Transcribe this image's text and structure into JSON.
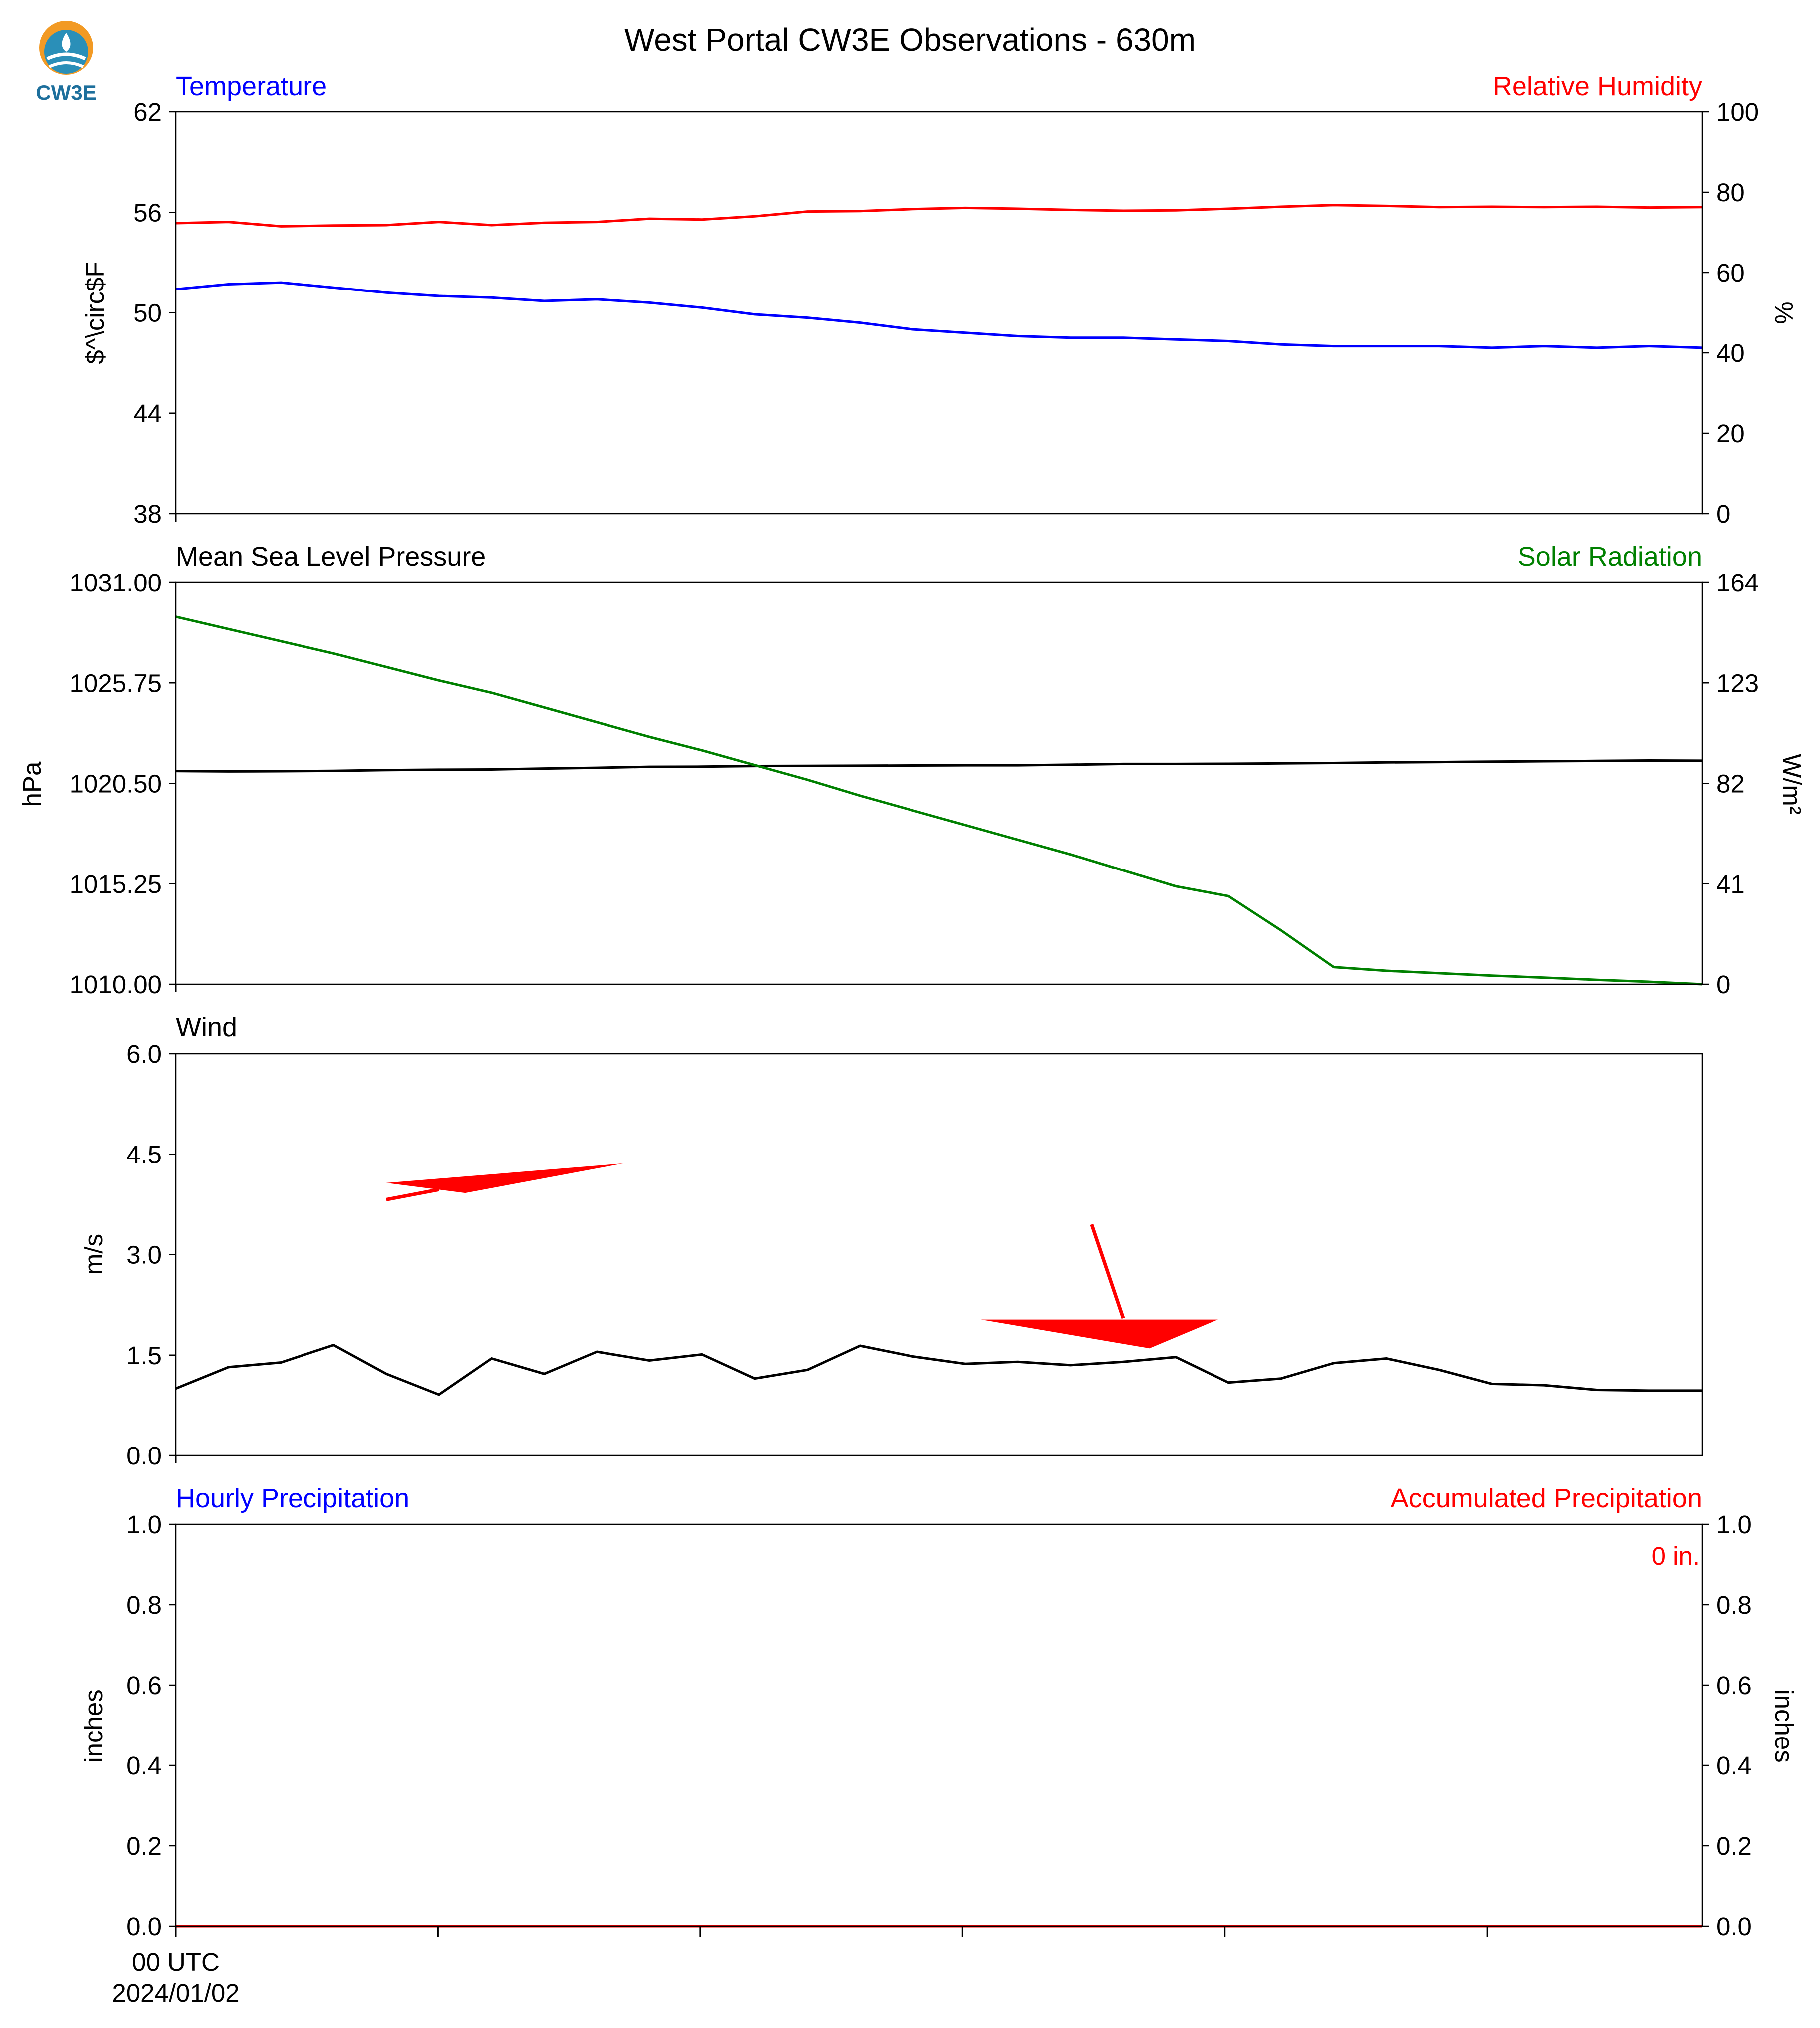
{
  "figure_title": "West Portal CW3E Observations - 630m",
  "logo": {
    "name": "cw3e-logo-icon",
    "text": "CW3E",
    "colors": [
      "#f29a24",
      "#2a8fb8",
      "#1d6f9c"
    ]
  },
  "colors": {
    "blue": "#0000ff",
    "red": "#ff0000",
    "green": "#008000",
    "black": "#000000"
  },
  "x_axis": {
    "points_per_panel": 30,
    "tick_label": "00 UTC",
    "date_label": "2024/01/02"
  },
  "chart_data": [
    {
      "type": "line",
      "left_title": "Temperature",
      "right_title": "Relative Humidity",
      "ylabel_left": "$^\\circ$F",
      "ylabel_right": "%",
      "ylim_left": [
        38,
        62
      ],
      "ylim_right": [
        0,
        100
      ],
      "ticks_left": [
        "38",
        "44",
        "50",
        "56",
        "62"
      ],
      "ticks_left_values": [
        38,
        44,
        50,
        56,
        62
      ],
      "ticks_right": [
        "0",
        "20",
        "40",
        "60",
        "80",
        "100"
      ],
      "ticks_right_values": [
        0,
        20,
        40,
        60,
        80,
        100
      ],
      "series": [
        {
          "axis": "left",
          "color": "#0000ff",
          "values": [
            51.4,
            51.7,
            51.8,
            51.5,
            51.2,
            51.0,
            50.9,
            50.7,
            50.8,
            50.6,
            50.3,
            49.9,
            49.7,
            49.4,
            49.0,
            48.8,
            48.6,
            48.5,
            48.5,
            48.4,
            48.3,
            48.1,
            48.0,
            48.0,
            48.0,
            47.9,
            48.0,
            47.9,
            48.0,
            47.9
          ]
        },
        {
          "axis": "right",
          "color": "#ff0000",
          "values": [
            72.3,
            72.6,
            71.5,
            71.7,
            71.8,
            72.6,
            71.8,
            72.4,
            72.6,
            73.4,
            73.2,
            74.0,
            75.2,
            75.3,
            75.8,
            76.1,
            75.9,
            75.6,
            75.4,
            75.5,
            75.9,
            76.4,
            76.8,
            76.6,
            76.3,
            76.4,
            76.3,
            76.4,
            76.2,
            76.3
          ]
        }
      ]
    },
    {
      "type": "line",
      "left_title": "Mean Sea Level Pressure",
      "right_title": "Solar Radiation",
      "ylabel_left": "hPa",
      "ylabel_right": "W/m²",
      "ylim_left": [
        1010.0,
        1031.0
      ],
      "ylim_right": [
        0,
        164
      ],
      "ticks_left": [
        "1010.00",
        "1015.25",
        "1020.50",
        "1025.75",
        "1031.00"
      ],
      "ticks_left_values": [
        1010.0,
        1015.25,
        1020.5,
        1025.75,
        1031.0
      ],
      "ticks_right": [
        "0",
        "41",
        "82",
        "123",
        "164"
      ],
      "ticks_right_values": [
        0,
        41,
        82,
        123,
        164
      ],
      "series": [
        {
          "axis": "left",
          "color": "#000000",
          "values": [
            1021.15,
            1021.13,
            1021.14,
            1021.16,
            1021.2,
            1021.22,
            1021.23,
            1021.28,
            1021.32,
            1021.37,
            1021.38,
            1021.41,
            1021.42,
            1021.43,
            1021.44,
            1021.45,
            1021.45,
            1021.48,
            1021.52,
            1021.52,
            1021.53,
            1021.55,
            1021.57,
            1021.6,
            1021.62,
            1021.64,
            1021.66,
            1021.68,
            1021.7,
            1021.69
          ]
        },
        {
          "axis": "right",
          "color": "#008000",
          "values": [
            150.0,
            145.0,
            140.0,
            135.0,
            129.5,
            124.0,
            119.0,
            113.0,
            107.0,
            101.0,
            95.5,
            89.5,
            83.5,
            77.0,
            71.0,
            65.0,
            59.0,
            53.0,
            46.5,
            40.0,
            36.0,
            22.0,
            7.0,
            5.5,
            4.5,
            3.5,
            2.7,
            1.8,
            1.0,
            0.0
          ]
        }
      ]
    },
    {
      "type": "line",
      "left_title": "Wind",
      "ylabel_left": "m/s",
      "ylim_left": [
        0.0,
        6.0
      ],
      "ticks_left": [
        "0.0",
        "1.5",
        "3.0",
        "4.5",
        "6.0"
      ],
      "ticks_left_values": [
        0.0,
        1.5,
        3.0,
        4.5,
        6.0
      ],
      "series": [
        {
          "axis": "left",
          "color": "#000000",
          "values": [
            1.0,
            1.32,
            1.39,
            1.65,
            1.22,
            0.91,
            1.45,
            1.22,
            1.55,
            1.42,
            1.51,
            1.15,
            1.28,
            1.64,
            1.48,
            1.37,
            1.4,
            1.35,
            1.4,
            1.47,
            1.09,
            1.15,
            1.38,
            1.45,
            1.28,
            1.07,
            1.05,
            0.98,
            0.97,
            0.97
          ]
        }
      ],
      "wind_arrows": [
        {
          "color": "#ff0000",
          "tail": [
            4.0,
            4.07
          ],
          "tip": [
            8.5,
            4.36
          ],
          "head": [
            [
              4.0,
              4.07
            ],
            [
              5.5,
              3.92
            ],
            [
              8.5,
              4.36
            ]
          ],
          "barb": [
            [
              4.0,
              3.82
            ],
            [
              5.0,
              3.97
            ]
          ]
        },
        {
          "color": "#ff0000",
          "tail": [
            17.4,
            3.45
          ],
          "tip": [
            18.5,
            2.03
          ],
          "head": [
            [
              15.3,
              2.03
            ],
            [
              19.8,
              2.03
            ],
            [
              18.5,
              1.6
            ]
          ],
          "barb": [
            [
              17.4,
              3.45
            ],
            [
              18.0,
              2.05
            ]
          ]
        }
      ]
    },
    {
      "type": "line",
      "left_title": "Hourly Precipitation",
      "right_title": "Accumulated Precipitation",
      "ylabel_left": "inches",
      "ylabel_right": "inches",
      "ylim_left": [
        0.0,
        1.0
      ],
      "ylim_right": [
        0.0,
        1.0
      ],
      "ticks_left": [
        "0.0",
        "0.2",
        "0.4",
        "0.6",
        "0.8",
        "1.0"
      ],
      "ticks_left_values": [
        0.0,
        0.2,
        0.4,
        0.6,
        0.8,
        1.0
      ],
      "ticks_right": [
        "0.0",
        "0.2",
        "0.4",
        "0.6",
        "0.8",
        "1.0"
      ],
      "ticks_right_values": [
        0.0,
        0.2,
        0.4,
        0.6,
        0.8,
        1.0
      ],
      "annotation": "0 in.",
      "series": [
        {
          "axis": "left",
          "color": "#0000ff",
          "values": [
            0,
            0,
            0,
            0,
            0,
            0,
            0,
            0,
            0,
            0,
            0,
            0,
            0,
            0,
            0,
            0,
            0,
            0,
            0,
            0,
            0,
            0,
            0,
            0,
            0,
            0,
            0,
            0,
            0,
            0
          ]
        },
        {
          "axis": "right",
          "color": "#ff0000",
          "values": [
            0,
            0,
            0,
            0,
            0,
            0,
            0,
            0,
            0,
            0,
            0,
            0,
            0,
            0,
            0,
            0,
            0,
            0,
            0,
            0,
            0,
            0,
            0,
            0,
            0,
            0,
            0,
            0,
            0,
            0
          ]
        }
      ]
    }
  ]
}
